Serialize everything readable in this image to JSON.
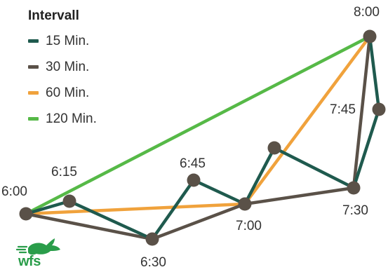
{
  "legend": {
    "title": "Intervall",
    "items": [
      {
        "label": "15 Min.",
        "color": "#1f5a4e"
      },
      {
        "label": "30 Min.",
        "color": "#5a5148"
      },
      {
        "label": "60 Min.",
        "color": "#f0a23c"
      },
      {
        "label": "120 Min.",
        "color": "#56b947"
      }
    ]
  },
  "stops": [
    {
      "id": "s600",
      "label": "6:00"
    },
    {
      "id": "s615",
      "label": "6:15"
    },
    {
      "id": "s630",
      "label": "6:30"
    },
    {
      "id": "s645",
      "label": "6:45"
    },
    {
      "id": "s700",
      "label": "7:00"
    },
    {
      "id": "s715",
      "label": ""
    },
    {
      "id": "s730",
      "label": "7:30"
    },
    {
      "id": "s745",
      "label": "7:45"
    },
    {
      "id": "s800",
      "label": "8:00"
    }
  ],
  "routes": [
    {
      "interval": "120 Min.",
      "color": "#56b947",
      "stops": [
        "s600",
        "s800"
      ]
    },
    {
      "interval": "60 Min.",
      "color": "#f0a23c",
      "stops": [
        "s600",
        "s700",
        "s800"
      ]
    },
    {
      "interval": "30 Min.",
      "color": "#5a5148",
      "stops": [
        "s600",
        "s630",
        "s700",
        "s730",
        "s800"
      ]
    },
    {
      "interval": "15 Min.",
      "color": "#1f5a4e",
      "stops": [
        "s600",
        "s615",
        "s630",
        "s645",
        "s700",
        "s715",
        "s730",
        "s745",
        "s800"
      ]
    }
  ],
  "node_color": "#5a5148",
  "logo": {
    "text": "wfs",
    "color": "#2a9d4a"
  }
}
